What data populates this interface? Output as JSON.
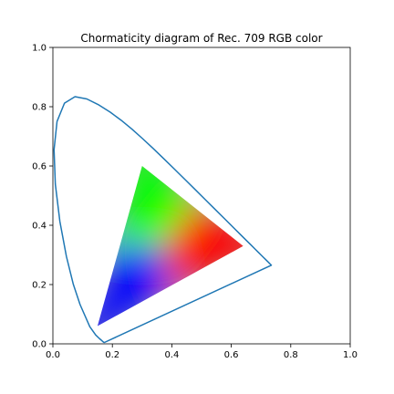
{
  "chart_data": {
    "type": "scatter",
    "title": "Chormaticity diagram of Rec. 709 RGB color",
    "xlabel": "",
    "ylabel": "",
    "xlim": [
      0.0,
      1.0
    ],
    "ylim": [
      0.0,
      1.0
    ],
    "x_ticks": [
      "0.0",
      "0.2",
      "0.4",
      "0.6",
      "0.8",
      "1.0"
    ],
    "y_ticks": [
      "0.0",
      "0.2",
      "0.4",
      "0.6",
      "0.8",
      "1.0"
    ],
    "grid": false,
    "series": [
      {
        "kind": "line",
        "color": "#1f77b4",
        "x": [
          0.1741,
          0.1738,
          0.1733,
          0.1726,
          0.1714,
          0.1689,
          0.1644,
          0.1566,
          0.144,
          0.1241,
          0.0913,
          0.0687,
          0.0454,
          0.0235,
          0.0082,
          0.0039,
          0.0139,
          0.0389,
          0.0743,
          0.1142,
          0.1547,
          0.1929,
          0.2296,
          0.2658,
          0.3016,
          0.3373,
          0.3731,
          0.4087,
          0.4441,
          0.4788,
          0.5125,
          0.5448,
          0.5752,
          0.6029,
          0.627,
          0.6482,
          0.6658,
          0.6801,
          0.6915,
          0.7006,
          0.7079,
          0.714,
          0.719,
          0.723,
          0.726,
          0.7283,
          0.73,
          0.7311,
          0.732,
          0.7327,
          0.7334,
          0.734,
          0.7344,
          0.7346,
          0.7347,
          0.1741
        ],
        "y": [
          0.005,
          0.0049,
          0.0048,
          0.0048,
          0.0051,
          0.0069,
          0.0109,
          0.0177,
          0.0297,
          0.0578,
          0.1327,
          0.2007,
          0.295,
          0.4127,
          0.5384,
          0.6548,
          0.7502,
          0.812,
          0.8338,
          0.8262,
          0.8059,
          0.7816,
          0.7543,
          0.7243,
          0.6923,
          0.6589,
          0.6245,
          0.5896,
          0.5547,
          0.5202,
          0.4866,
          0.4544,
          0.4242,
          0.3965,
          0.3725,
          0.3514,
          0.334,
          0.3197,
          0.3083,
          0.2993,
          0.292,
          0.2859,
          0.2809,
          0.277,
          0.274,
          0.2717,
          0.27,
          0.2689,
          0.268,
          0.2673,
          0.2666,
          0.266,
          0.2656,
          0.2654,
          0.2653,
          0.005
        ]
      },
      {
        "kind": "filled-triangle",
        "vertices": {
          "red": [
            0.64,
            0.33
          ],
          "green": [
            0.3,
            0.6
          ],
          "blue": [
            0.15,
            0.06
          ]
        },
        "colors": {
          "red": "#ff0000",
          "green": "#00ff00",
          "blue": "#0000ff"
        }
      }
    ]
  }
}
